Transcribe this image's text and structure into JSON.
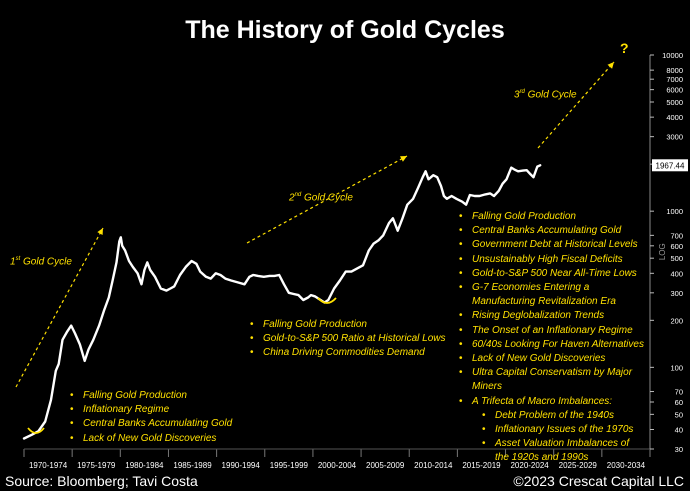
{
  "title": "The History of Gold Cycles",
  "source": "Source: Bloomberg; Tavi Costa",
  "copyright": "©2023 Crescat Capital LLC",
  "colors": {
    "background": "#000000",
    "line": "#ffffff",
    "annotation": "#ffe100"
  },
  "annotations": {
    "cycle1": {
      "prefix": "1",
      "sup": "st",
      "suffix": " Gold Cycle"
    },
    "cycle2": {
      "prefix": "2",
      "sup": "nd",
      "suffix": " Gold Cycle"
    },
    "cycle3": {
      "prefix": "3",
      "sup": "rd",
      "suffix": " Gold Cycle"
    },
    "question": "?",
    "box1": [
      "Falling Gold Production",
      "Inflationary Regime",
      "Central Banks Accumulating Gold",
      "Lack of New Gold Discoveries"
    ],
    "box2": [
      "Falling Gold Production",
      "Gold-to-S&P 500 Ratio at Historical Lows",
      "China Driving Commodities Demand"
    ],
    "box3": [
      {
        "text": "Falling Gold Production",
        "level": 0
      },
      {
        "text": "Central Banks Accumulating Gold",
        "level": 0
      },
      {
        "text": "Government Debt at Historical Levels",
        "level": 0
      },
      {
        "text": "Unsustainably High Fiscal Deficits",
        "level": 0
      },
      {
        "text": "Gold-to-S&P 500 Near All-Time Lows",
        "level": 0
      },
      {
        "text": "G-7 Economies Entering a Manufacturing Revitalization Era",
        "level": 0
      },
      {
        "text": "Rising Deglobalization Trends",
        "level": 0
      },
      {
        "text": "The Onset of an Inflationary Regime",
        "level": 0
      },
      {
        "text": "60/40s Looking For Haven Alternatives",
        "level": 0
      },
      {
        "text": "Lack of New Gold Discoveries",
        "level": 0
      },
      {
        "text": "Ultra Capital Conservatism by Major Miners",
        "level": 0
      },
      {
        "text": "A Trifecta of Macro Imbalances:",
        "level": 0
      },
      {
        "text": "Debt Problem of the 1940s",
        "level": 1
      },
      {
        "text": "Inflationary Issues of the 1970s",
        "level": 1
      },
      {
        "text": "Asset Valuation Imbalances of the 1920s and 1990s",
        "level": 1
      }
    ]
  },
  "chart_data": {
    "type": "line",
    "y_scale": "log",
    "ylim": [
      30,
      10000
    ],
    "xlim": [
      1970,
      2035
    ],
    "x_tick_labels": [
      "1970-1974",
      "1975-1979",
      "1980-1984",
      "1985-1989",
      "1990-1994",
      "1995-1999",
      "2000-2004",
      "2005-2009",
      "2010-2014",
      "2015-2019",
      "2020-2024",
      "2025-2029",
      "2030-2034"
    ],
    "y_ticks": [
      30,
      40,
      50,
      60,
      70,
      100,
      200,
      300,
      400,
      500,
      600,
      700,
      1000,
      2000,
      3000,
      4000,
      5000,
      6000,
      7000,
      8000,
      10000
    ],
    "y_tick_labels": [
      "30",
      "40",
      "50",
      "60",
      "70",
      "100",
      "200",
      "300",
      "400",
      "500",
      "600",
      "700",
      "1000",
      "2000",
      "3000",
      "4000",
      "5000",
      "6000",
      "7000",
      "8000",
      "10000"
    ],
    "y_axis_label": "LOG",
    "last_value_label": "1967.44",
    "series": [
      {
        "x": [
          1970.0,
          1970.8,
          1971.5,
          1972.2,
          1972.8,
          1973.3,
          1973.6,
          1974.0,
          1974.5,
          1974.9,
          1975.3,
          1975.8,
          1976.3,
          1976.7,
          1977.2,
          1977.8,
          1978.3,
          1978.8,
          1979.2,
          1979.6,
          1979.9,
          1980.05,
          1980.2,
          1980.5,
          1980.9,
          1981.3,
          1981.8,
          1982.2,
          1982.5,
          1982.8,
          1983.1,
          1983.6,
          1984.2,
          1984.8,
          1985.2,
          1985.6,
          1986.2,
          1986.8,
          1987.4,
          1987.9,
          1988.3,
          1988.9,
          1989.4,
          1989.9,
          1990.4,
          1990.9,
          1991.5,
          1992.2,
          1992.9,
          1993.4,
          1993.8,
          1994.3,
          1994.9,
          1995.5,
          1996.0,
          1996.5,
          1997.0,
          1997.5,
          1998.0,
          1998.5,
          1999.0,
          1999.5,
          1999.8,
          2000.2,
          2000.8,
          2001.2,
          2001.6,
          2002.2,
          2002.8,
          2003.4,
          2004.0,
          2004.6,
          2005.2,
          2005.8,
          2006.3,
          2006.8,
          2007.3,
          2007.9,
          2008.3,
          2008.8,
          2009.3,
          2009.8,
          2010.4,
          2010.9,
          2011.4,
          2011.7,
          2012.0,
          2012.5,
          2012.9,
          2013.3,
          2013.6,
          2013.9,
          2014.4,
          2014.9,
          2015.5,
          2015.9,
          2016.3,
          2016.8,
          2017.3,
          2017.9,
          2018.4,
          2018.8,
          2019.3,
          2019.7,
          2020.1,
          2020.6,
          2020.9,
          2021.3,
          2021.8,
          2022.2,
          2022.6,
          2022.9,
          2023.3,
          2023.6
        ],
        "y": [
          35,
          37,
          39,
          45,
          62,
          95,
          105,
          150,
          170,
          185,
          165,
          140,
          110,
          130,
          150,
          185,
          230,
          280,
          360,
          470,
          640,
          680,
          600,
          560,
          480,
          440,
          400,
          340,
          420,
          470,
          420,
          380,
          320,
          310,
          320,
          330,
          390,
          440,
          480,
          460,
          410,
          380,
          370,
          400,
          390,
          370,
          360,
          350,
          340,
          380,
          390,
          385,
          380,
          385,
          385,
          390,
          340,
          300,
          295,
          290,
          270,
          280,
          290,
          285,
          270,
          260,
          270,
          320,
          360,
          410,
          410,
          430,
          450,
          560,
          620,
          650,
          700,
          840,
          900,
          750,
          900,
          1100,
          1200,
          1400,
          1650,
          1800,
          1600,
          1700,
          1650,
          1450,
          1250,
          1200,
          1250,
          1200,
          1150,
          1100,
          1270,
          1250,
          1250,
          1280,
          1300,
          1250,
          1350,
          1500,
          1600,
          1900,
          1850,
          1800,
          1820,
          1830,
          1720,
          1650,
          1930,
          1967
        ]
      }
    ]
  }
}
